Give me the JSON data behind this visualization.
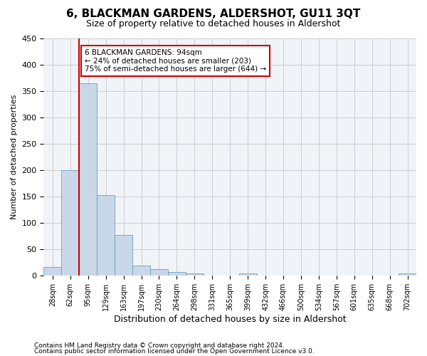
{
  "title": "6, BLACKMAN GARDENS, ALDERSHOT, GU11 3QT",
  "subtitle": "Size of property relative to detached houses in Aldershot",
  "xlabel": "Distribution of detached houses by size in Aldershot",
  "ylabel": "Number of detached properties",
  "footnote1": "Contains HM Land Registry data © Crown copyright and database right 2024.",
  "footnote2": "Contains public sector information licensed under the Open Government Licence v3.0.",
  "bar_color": "#c8d8e8",
  "bar_edge_color": "#6090b0",
  "grid_color": "#cccccc",
  "background_color": "#f0f4f8",
  "annotation_box_color": "#ffffff",
  "annotation_border_color": "#cc0000",
  "property_line_color": "#cc0000",
  "bins": [
    "28sqm",
    "62sqm",
    "95sqm",
    "129sqm",
    "163sqm",
    "197sqm",
    "230sqm",
    "264sqm",
    "298sqm",
    "331sqm",
    "365sqm",
    "399sqm",
    "432sqm",
    "466sqm",
    "500sqm",
    "534sqm",
    "567sqm",
    "601sqm",
    "635sqm",
    "668sqm",
    "702sqm"
  ],
  "bar_heights": [
    16,
    200,
    365,
    153,
    78,
    20,
    13,
    7,
    5,
    0,
    0,
    4,
    0,
    0,
    0,
    0,
    0,
    0,
    0,
    0,
    4
  ],
  "property_size": 94,
  "property_label": "6 BLACKMAN GARDENS: 94sqm",
  "pct_smaller": "24% of detached houses are smaller (203)",
  "pct_larger": "75% of semi-detached houses are larger (644)",
  "property_bin_index": 2,
  "ylim": [
    0,
    450
  ],
  "yticks": [
    0,
    50,
    100,
    150,
    200,
    250,
    300,
    350,
    400,
    450
  ]
}
